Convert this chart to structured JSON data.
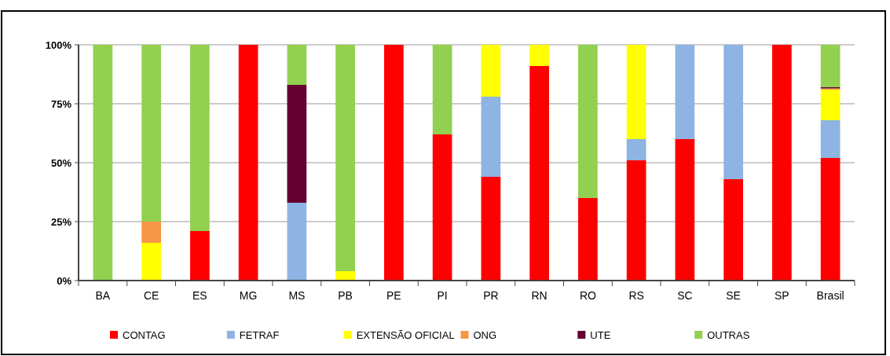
{
  "chart_data": {
    "type": "bar",
    "stacked": true,
    "categories": [
      "BA",
      "CE",
      "ES",
      "MG",
      "MS",
      "PB",
      "PE",
      "PI",
      "PR",
      "RN",
      "RO",
      "RS",
      "SC",
      "SE",
      "SP",
      "Brasil"
    ],
    "series": [
      {
        "name": "CONTAG",
        "color": "#ff0000",
        "values": [
          0,
          0,
          21,
          100,
          0,
          0,
          100,
          62,
          44,
          91,
          35,
          51,
          60,
          43,
          100,
          52
        ]
      },
      {
        "name": "FETRAF",
        "color": "#8db4e2",
        "values": [
          0,
          0,
          0,
          0,
          33,
          0,
          0,
          0,
          34,
          0,
          0,
          9,
          40,
          57,
          0,
          16
        ]
      },
      {
        "name": "EXTENSÃO OFICIAL",
        "color": "#ffff00",
        "values": [
          0,
          16,
          0,
          0,
          0,
          4,
          0,
          0,
          22,
          9,
          0,
          40,
          0,
          0,
          0,
          13
        ]
      },
      {
        "name": "ONG",
        "color": "#f79646",
        "values": [
          0,
          9,
          0,
          0,
          0,
          0,
          0,
          0,
          0,
          0,
          0,
          0,
          0,
          0,
          0,
          0.5
        ]
      },
      {
        "name": "UTE",
        "color": "#660033",
        "values": [
          0,
          0,
          0,
          0,
          50,
          0,
          0,
          0,
          0,
          0,
          0,
          0,
          0,
          0,
          0,
          0.5
        ]
      },
      {
        "name": "OUTRAS",
        "color": "#92d050",
        "values": [
          100,
          75,
          79,
          0,
          17,
          96,
          0,
          38,
          0,
          0,
          65,
          0,
          0,
          0,
          0,
          18
        ]
      }
    ],
    "ylim": [
      0,
      100
    ],
    "yticks": [
      {
        "value": 0,
        "label": "0%"
      },
      {
        "value": 25,
        "label": "25%"
      },
      {
        "value": 50,
        "label": "50%"
      },
      {
        "value": 75,
        "label": "75%"
      },
      {
        "value": 100,
        "label": "100%"
      }
    ],
    "grid": "y",
    "legend": "bottom"
  }
}
